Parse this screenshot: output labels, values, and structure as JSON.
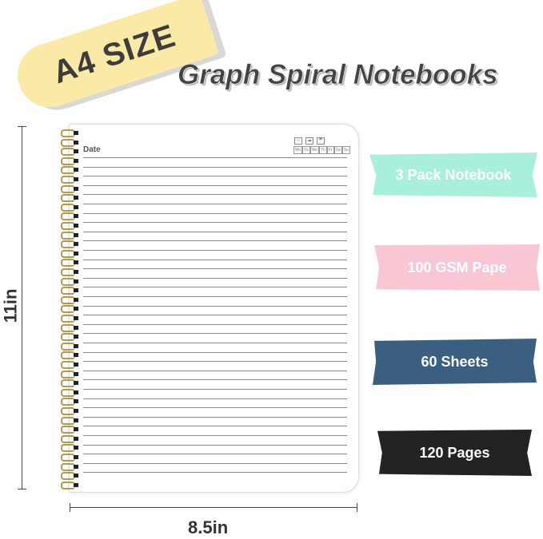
{
  "badge": "A4 SIZE",
  "title": "Graph Spiral Notebooks",
  "page": {
    "date_label": "Date",
    "weather_icons": [
      "sun-icon",
      "cloud-icon",
      "rain-icon"
    ],
    "days": [
      "Mo",
      "Tu",
      "We",
      "Th",
      "Fr",
      "Sa",
      "Su"
    ]
  },
  "dimensions": {
    "height": "11in",
    "width": "8.5in"
  },
  "features": [
    {
      "label": "3 Pack Notebook",
      "color": "#a8efdc",
      "text_color": "#ffffff"
    },
    {
      "label": "100 GSM Pape",
      "color": "#f9c6d3",
      "text_color": "#ffffff"
    },
    {
      "label": "60 Sheets",
      "color": "#3a5f80",
      "text_color": "#ffffff"
    },
    {
      "label": "120 Pages",
      "color": "#232323",
      "text_color": "#ffffff"
    }
  ]
}
